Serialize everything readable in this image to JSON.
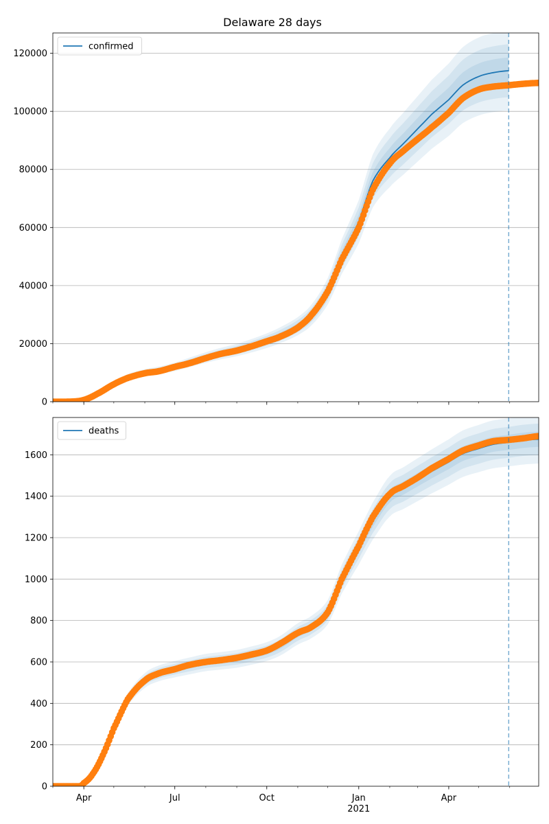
{
  "figure": {
    "title": "Delaware 28 days"
  },
  "colors": {
    "model": "#1f77b4",
    "observed": "#ff7f0e",
    "band": "#1f77b4",
    "grid": "#b0b0b0",
    "forecast_line": "#1f77b4"
  },
  "x_axis": {
    "start": "2020-03-01",
    "end": "2021-06-30",
    "forecast_start": "2021-05-31",
    "ticks": [
      {
        "date": "2020-04-01",
        "label": "Apr"
      },
      {
        "date": "2020-07-01",
        "label": "Jul"
      },
      {
        "date": "2020-10-01",
        "label": "Oct"
      },
      {
        "date": "2021-01-01",
        "label": "Jan",
        "sublabel": "2021"
      },
      {
        "date": "2021-04-01",
        "label": "Apr"
      }
    ]
  },
  "chart_data": [
    {
      "type": "line",
      "title": "Delaware 28 days",
      "ylim": [
        0,
        127000
      ],
      "yticks": [
        "0",
        "20000",
        "40000",
        "60000",
        "80000",
        "100000",
        "120000"
      ],
      "grid": true,
      "legend_placement": "top-left",
      "series": [
        {
          "name": "confirmed",
          "kind": "model",
          "points": [
            [
              "2020-03-01",
              0
            ],
            [
              "2020-03-20",
              100
            ],
            [
              "2020-04-01",
              800
            ],
            [
              "2020-04-15",
              3000
            ],
            [
              "2020-05-01",
              6000
            ],
            [
              "2020-05-15",
              8500
            ],
            [
              "2020-06-01",
              10000
            ],
            [
              "2020-06-15",
              10800
            ],
            [
              "2020-07-01",
              12000
            ],
            [
              "2020-07-15",
              13500
            ],
            [
              "2020-08-01",
              15200
            ],
            [
              "2020-08-15",
              16500
            ],
            [
              "2020-09-01",
              17800
            ],
            [
              "2020-09-15",
              19200
            ],
            [
              "2020-10-01",
              21000
            ],
            [
              "2020-10-15",
              23000
            ],
            [
              "2020-11-01",
              26000
            ],
            [
              "2020-11-15",
              30000
            ],
            [
              "2020-12-01",
              38000
            ],
            [
              "2020-12-15",
              50000
            ],
            [
              "2021-01-01",
              62000
            ],
            [
              "2021-01-15",
              76000
            ],
            [
              "2021-02-01",
              84000
            ],
            [
              "2021-02-15",
              89000
            ],
            [
              "2021-03-01",
              94000
            ],
            [
              "2021-03-15",
              99000
            ],
            [
              "2021-04-01",
              104000
            ],
            [
              "2021-04-15",
              109000
            ],
            [
              "2021-05-01",
              112000
            ],
            [
              "2021-05-15",
              113300
            ],
            [
              "2021-05-31",
              114000
            ]
          ],
          "bands_pct": [
            0.12,
            0.08,
            0.04
          ]
        },
        {
          "name": "",
          "kind": "observed",
          "points": [
            [
              "2020-03-01",
              0
            ],
            [
              "2020-03-20",
              50
            ],
            [
              "2020-04-01",
              600
            ],
            [
              "2020-04-15",
              2800
            ],
            [
              "2020-05-01",
              6000
            ],
            [
              "2020-05-15",
              8200
            ],
            [
              "2020-06-01",
              9800
            ],
            [
              "2020-06-15",
              10500
            ],
            [
              "2020-07-01",
              12000
            ],
            [
              "2020-07-15",
              13200
            ],
            [
              "2020-08-01",
              15000
            ],
            [
              "2020-08-15",
              16400
            ],
            [
              "2020-09-01",
              17600
            ],
            [
              "2020-09-15",
              19000
            ],
            [
              "2020-10-01",
              20800
            ],
            [
              "2020-10-15",
              22500
            ],
            [
              "2020-11-01",
              25500
            ],
            [
              "2020-11-15",
              30000
            ],
            [
              "2020-12-01",
              38000
            ],
            [
              "2020-12-15",
              49000
            ],
            [
              "2021-01-01",
              60000
            ],
            [
              "2021-01-15",
              73000
            ],
            [
              "2021-02-01",
              82000
            ],
            [
              "2021-02-15",
              86500
            ],
            [
              "2021-03-01",
              90500
            ],
            [
              "2021-03-15",
              94500
            ],
            [
              "2021-04-01",
              99500
            ],
            [
              "2021-04-15",
              104500
            ],
            [
              "2021-05-01",
              107500
            ],
            [
              "2021-05-15",
              108500
            ],
            [
              "2021-05-31",
              109000
            ],
            [
              "2021-06-15",
              109500
            ],
            [
              "2021-06-30",
              109800
            ]
          ]
        }
      ]
    },
    {
      "type": "line",
      "title": "",
      "ylim": [
        0,
        1780
      ],
      "yticks": [
        "0",
        "200",
        "400",
        "600",
        "800",
        "1000",
        "1200",
        "1400",
        "1600"
      ],
      "grid": true,
      "legend_placement": "top-left",
      "series": [
        {
          "name": "deaths",
          "kind": "model",
          "points": [
            [
              "2020-03-01",
              0
            ],
            [
              "2020-03-25",
              0
            ],
            [
              "2020-04-10",
              60
            ],
            [
              "2020-04-20",
              150
            ],
            [
              "2020-05-01",
              280
            ],
            [
              "2020-05-15",
              420
            ],
            [
              "2020-06-01",
              510
            ],
            [
              "2020-06-15",
              545
            ],
            [
              "2020-07-01",
              565
            ],
            [
              "2020-07-15",
              580
            ],
            [
              "2020-08-01",
              597
            ],
            [
              "2020-08-15",
              605
            ],
            [
              "2020-09-01",
              615
            ],
            [
              "2020-09-15",
              630
            ],
            [
              "2020-10-01",
              650
            ],
            [
              "2020-10-15",
              680
            ],
            [
              "2020-11-01",
              735
            ],
            [
              "2020-11-15",
              770
            ],
            [
              "2020-12-01",
              840
            ],
            [
              "2020-12-15",
              1000
            ],
            [
              "2021-01-01",
              1150
            ],
            [
              "2021-01-15",
              1280
            ],
            [
              "2021-02-01",
              1400
            ],
            [
              "2021-02-15",
              1440
            ],
            [
              "2021-03-01",
              1480
            ],
            [
              "2021-03-15",
              1520
            ],
            [
              "2021-04-01",
              1565
            ],
            [
              "2021-04-15",
              1605
            ],
            [
              "2021-05-01",
              1630
            ],
            [
              "2021-05-15",
              1650
            ],
            [
              "2021-05-31",
              1660
            ],
            [
              "2021-06-15",
              1670
            ],
            [
              "2021-06-30",
              1675
            ]
          ],
          "bands_pct": [
            0.07,
            0.045,
            0.022
          ]
        },
        {
          "name": "",
          "kind": "observed",
          "points": [
            [
              "2020-03-01",
              0
            ],
            [
              "2020-03-28",
              0
            ],
            [
              "2020-04-01",
              15
            ],
            [
              "2020-04-10",
              60
            ],
            [
              "2020-04-20",
              150
            ],
            [
              "2020-05-01",
              280
            ],
            [
              "2020-05-15",
              420
            ],
            [
              "2020-06-01",
              510
            ],
            [
              "2020-06-15",
              545
            ],
            [
              "2020-07-01",
              565
            ],
            [
              "2020-07-15",
              585
            ],
            [
              "2020-08-01",
              600
            ],
            [
              "2020-08-15",
              608
            ],
            [
              "2020-09-01",
              620
            ],
            [
              "2020-09-15",
              635
            ],
            [
              "2020-10-01",
              655
            ],
            [
              "2020-10-15",
              690
            ],
            [
              "2020-11-01",
              740
            ],
            [
              "2020-11-15",
              770
            ],
            [
              "2020-12-01",
              840
            ],
            [
              "2020-12-15",
              1000
            ],
            [
              "2021-01-01",
              1160
            ],
            [
              "2021-01-15",
              1300
            ],
            [
              "2021-02-01",
              1410
            ],
            [
              "2021-02-15",
              1450
            ],
            [
              "2021-03-01",
              1490
            ],
            [
              "2021-03-15",
              1535
            ],
            [
              "2021-04-01",
              1580
            ],
            [
              "2021-04-15",
              1620
            ],
            [
              "2021-05-01",
              1645
            ],
            [
              "2021-05-15",
              1665
            ],
            [
              "2021-05-31",
              1672
            ],
            [
              "2021-06-15",
              1680
            ],
            [
              "2021-06-30",
              1690
            ]
          ]
        }
      ]
    }
  ]
}
